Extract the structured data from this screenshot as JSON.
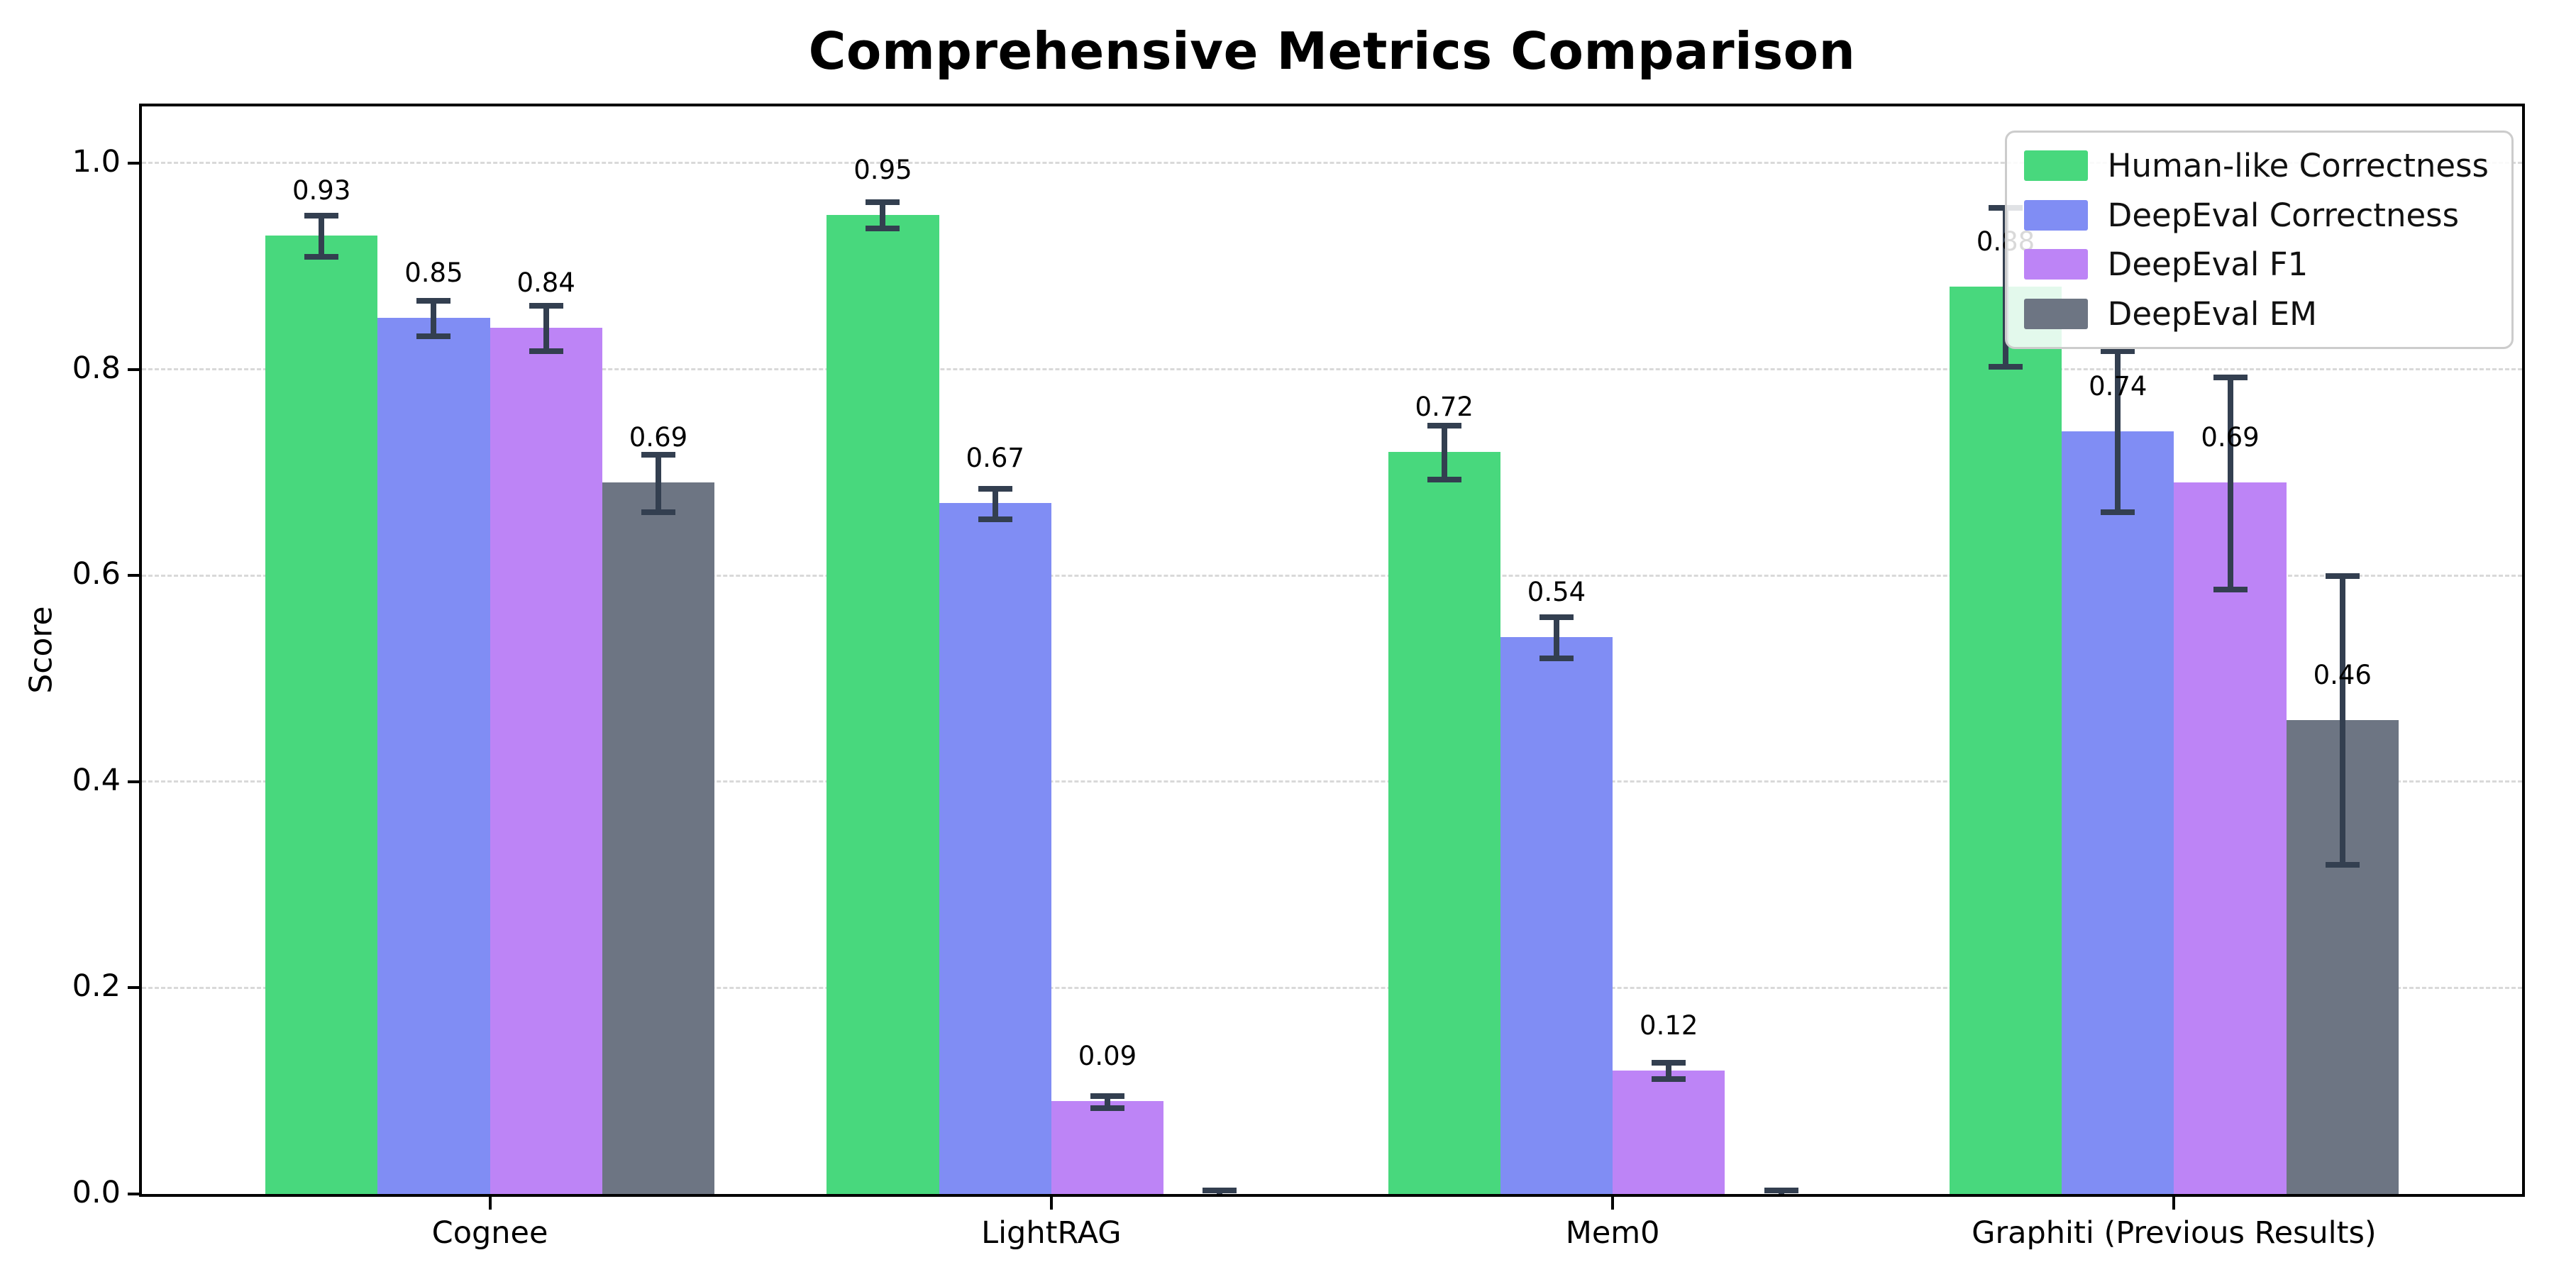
{
  "chart_data": {
    "type": "bar",
    "title": "Comprehensive Metrics Comparison",
    "ylabel": "Score",
    "xlabel": "",
    "categories": [
      "Cognee",
      "LightRAG",
      "Mem0",
      "Graphiti (Previous Results)"
    ],
    "series": [
      {
        "name": "Human-like Correctness",
        "color": "#48d87d",
        "values": [
          0.93,
          0.95,
          0.72,
          0.88
        ],
        "errors": [
          0.02,
          0.013,
          0.026,
          0.077
        ],
        "labels": [
          "0.93",
          "0.95",
          "0.72",
          "0.88"
        ]
      },
      {
        "name": "DeepEval Correctness",
        "color": "#808df4",
        "values": [
          0.85,
          0.67,
          0.54,
          0.74
        ],
        "errors": [
          0.017,
          0.015,
          0.02,
          0.078
        ],
        "labels": [
          "0.85",
          "0.67",
          "0.54",
          "0.74"
        ]
      },
      {
        "name": "DeepEval F1",
        "color": "#bd84f6",
        "values": [
          0.84,
          0.09,
          0.12,
          0.69
        ],
        "errors": [
          0.022,
          0.006,
          0.008,
          0.103
        ],
        "labels": [
          "0.84",
          "0.09",
          "0.12",
          "0.69"
        ]
      },
      {
        "name": "DeepEval EM",
        "color": "#6d7583",
        "values": [
          0.69,
          0.0,
          0.0,
          0.46
        ],
        "errors": [
          0.028,
          0.004,
          0.004,
          0.14
        ],
        "labels": [
          "0.69",
          "",
          "",
          "0.46"
        ]
      }
    ],
    "yticks": [
      "0.0",
      "0.2",
      "0.4",
      "0.6",
      "0.8",
      "1.0"
    ],
    "ylim": [
      0,
      1.055
    ],
    "grid": "horizontal-dashed",
    "legend_position": "upper right",
    "error_bar_color": "#333f50",
    "axis_color": "#000000"
  }
}
